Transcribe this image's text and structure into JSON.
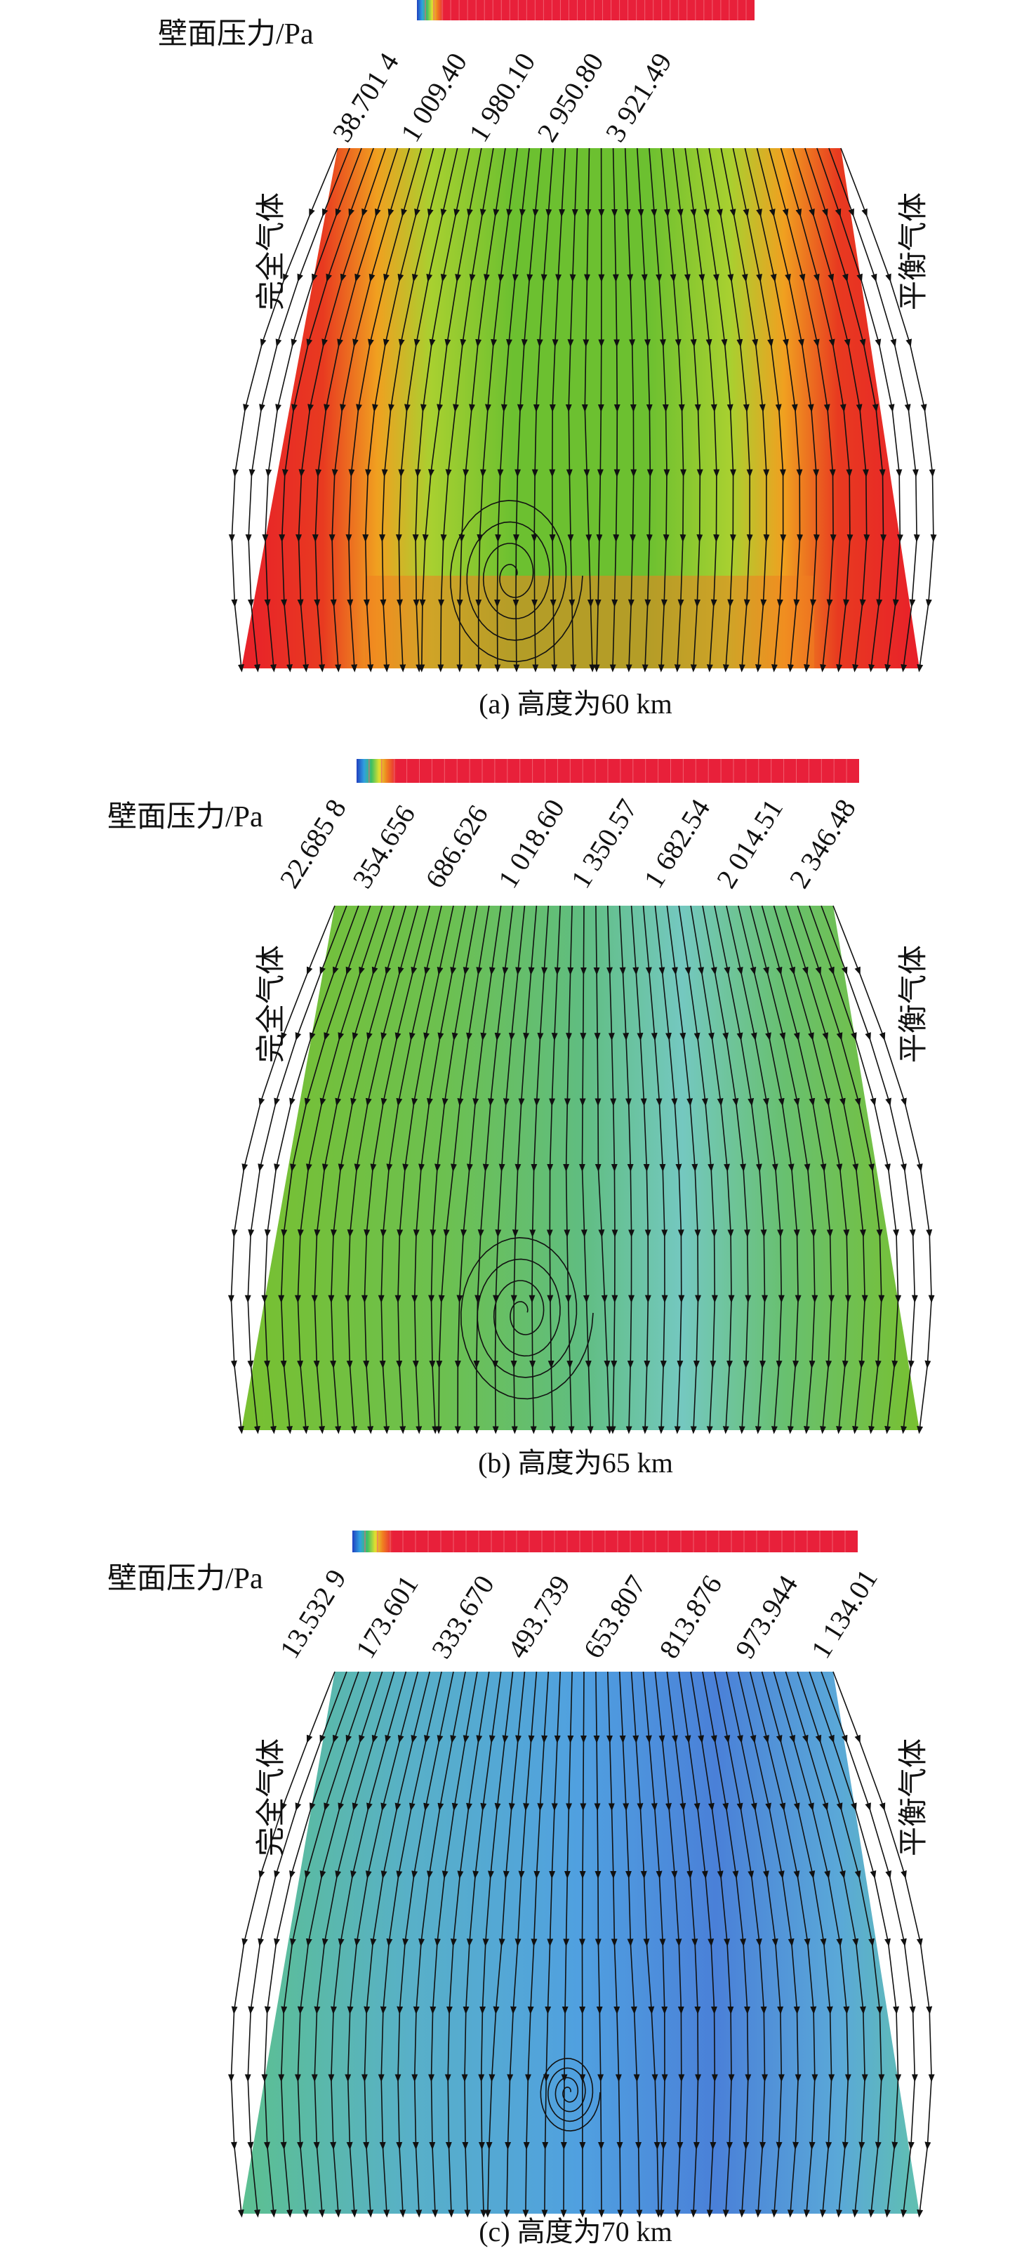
{
  "panels": [
    {
      "colorbar_label": "壁面压力/Pa",
      "ticks": [
        "38.701 4",
        "1 009.40",
        "1 980.10",
        "2 950.80",
        "3 921.49"
      ],
      "left_label": "完全气体",
      "right_label": "平衡气体",
      "caption": "(a) 高度为60 km"
    },
    {
      "colorbar_label": "壁面压力/Pa",
      "ticks": [
        "22.685 8",
        "354.656",
        "686.626",
        "1 018.60",
        "1 350.57",
        "1 682.54",
        "2 014.51",
        "2 346.48"
      ],
      "left_label": "完全气体",
      "right_label": "平衡气体",
      "caption": "(b) 高度为65 km"
    },
    {
      "colorbar_label": "壁面压力/Pa",
      "ticks": [
        "13.532 9",
        "173.601",
        "333.670",
        "493.739",
        "653.807",
        "813.876",
        "973.944",
        "1 134.01"
      ],
      "left_label": "完全气体",
      "right_label": "平衡气体",
      "caption": "(c) 高度为70 km"
    }
  ]
}
